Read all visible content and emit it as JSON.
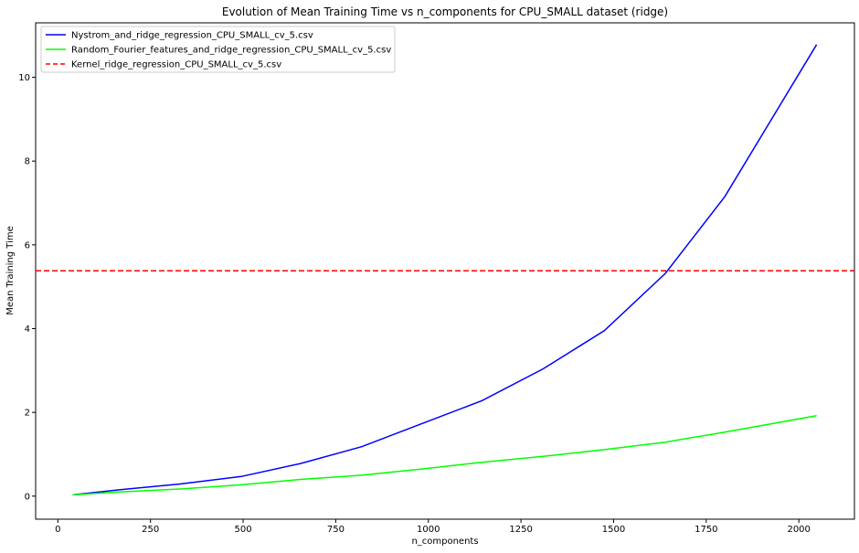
{
  "chart_data": {
    "type": "line",
    "title": "Evolution of Mean Training Time vs n_components for CPU_SMALL dataset (ridge)",
    "xlabel": "n_components",
    "ylabel": "Mean Training Time",
    "xlim": [
      -60,
      2150
    ],
    "ylim": [
      -0.55,
      11.3
    ],
    "xticks": [
      0,
      250,
      500,
      750,
      1000,
      1250,
      1500,
      1750,
      2000
    ],
    "yticks": [
      0,
      2,
      4,
      6,
      8,
      10
    ],
    "grid": false,
    "legend_position": "top-left",
    "series": [
      {
        "name": "Nystrom_and_ridge_regression_CPU_SMALL_cv_5.csv",
        "color": "#0000ff",
        "style": "solid",
        "x": [
          40,
          165,
          330,
          495,
          655,
          820,
          985,
          1145,
          1310,
          1475,
          1640,
          1800,
          2048
        ],
        "y": [
          0.03,
          0.15,
          0.29,
          0.47,
          0.78,
          1.18,
          1.74,
          2.28,
          3.04,
          3.95,
          5.32,
          7.15,
          10.78
        ]
      },
      {
        "name": "Random_Fourier_features_and_ridge_regression_CPU_SMALL_cv_5.csv",
        "color": "#00ff00",
        "style": "solid",
        "x": [
          40,
          165,
          330,
          495,
          655,
          820,
          985,
          1145,
          1310,
          1475,
          1640,
          1800,
          2048
        ],
        "y": [
          0.03,
          0.1,
          0.17,
          0.27,
          0.4,
          0.5,
          0.65,
          0.81,
          0.95,
          1.11,
          1.29,
          1.53,
          1.92
        ]
      },
      {
        "name": "Kernel_ridge_regression_CPU_SMALL_cv_5.csv",
        "color": "#ff0000",
        "style": "dashed",
        "hline": 5.38
      }
    ]
  }
}
